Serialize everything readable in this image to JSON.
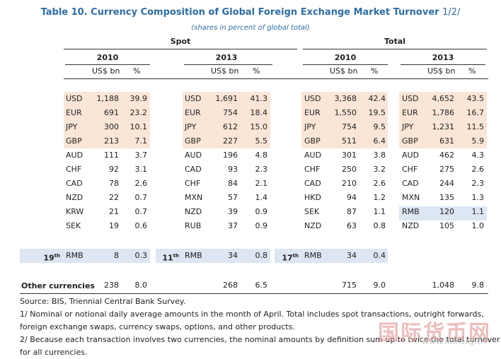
{
  "title": "Table 10. Currency Composition of Global Foreign Exchange Market Turnover",
  "title_page": "1/2/",
  "subtitle": "(shares in percent of global total)",
  "groups": {
    "spot": "Spot",
    "total": "Total"
  },
  "years": {
    "y2010": "2010",
    "y2013": "2013"
  },
  "units": {
    "usd": "US$ bn",
    "pct": "%"
  },
  "panels": [
    {
      "rows": [
        [
          "USD",
          "1,188",
          "39.9"
        ],
        [
          "EUR",
          "691",
          "23.2"
        ],
        [
          "JPY",
          "300",
          "10.1"
        ],
        [
          "GBP",
          "213",
          "7.1"
        ],
        [
          "AUD",
          "111",
          "3.7"
        ],
        [
          "CHF",
          "92",
          "3.1"
        ],
        [
          "CAD",
          "78",
          "2.6"
        ],
        [
          "NZD",
          "22",
          "0.7"
        ],
        [
          "KRW",
          "21",
          "0.7"
        ],
        [
          "SEK",
          "19",
          "0.6"
        ]
      ],
      "rmb": {
        "rank": "19",
        "suffix": "th",
        "code": "RMB",
        "value": "8",
        "pct": "0.3"
      },
      "other": {
        "value": "238",
        "pct": "8.0"
      }
    },
    {
      "rows": [
        [
          "USD",
          "1,691",
          "41.3"
        ],
        [
          "EUR",
          "754",
          "18.4"
        ],
        [
          "JPY",
          "612",
          "15.0"
        ],
        [
          "GBP",
          "227",
          "5.5"
        ],
        [
          "AUD",
          "196",
          "4.8"
        ],
        [
          "CAD",
          "93",
          "2.3"
        ],
        [
          "CHF",
          "84",
          "2.1"
        ],
        [
          "MXN",
          "57",
          "1.4"
        ],
        [
          "NZD",
          "39",
          "0.9"
        ],
        [
          "RUB",
          "37",
          "0.9"
        ]
      ],
      "rmb": {
        "rank": "11",
        "suffix": "th",
        "code": "RMB",
        "value": "34",
        "pct": "0.8"
      },
      "other": {
        "value": "268",
        "pct": "6.5"
      }
    },
    {
      "rows": [
        [
          "USD",
          "3,368",
          "42.4"
        ],
        [
          "EUR",
          "1,550",
          "19.5"
        ],
        [
          "JPY",
          "754",
          "9.5"
        ],
        [
          "GBP",
          "511",
          "6.4"
        ],
        [
          "AUD",
          "301",
          "3.8"
        ],
        [
          "CHF",
          "250",
          "3.2"
        ],
        [
          "CAD",
          "210",
          "2.6"
        ],
        [
          "HKD",
          "94",
          "1.2"
        ],
        [
          "SEK",
          "87",
          "1.1"
        ],
        [
          "NZD",
          "63",
          "0.8"
        ]
      ],
      "rmb": {
        "rank": "17",
        "suffix": "th",
        "code": "RMB",
        "value": "34",
        "pct": "0.4"
      },
      "other": {
        "value": "715",
        "pct": "9.0"
      }
    },
    {
      "rows": [
        [
          "USD",
          "4,652",
          "43.5"
        ],
        [
          "EUR",
          "1,786",
          "16.7"
        ],
        [
          "JPY",
          "1,231",
          "11.5"
        ],
        [
          "GBP",
          "631",
          "5.9"
        ],
        [
          "AUD",
          "462",
          "4.3"
        ],
        [
          "CHF",
          "275",
          "2.6"
        ],
        [
          "CAD",
          "244",
          "2.3"
        ],
        [
          "MXN",
          "135",
          "1.3"
        ],
        [
          "RMB",
          "120",
          "1.1"
        ],
        [
          "NZD",
          "105",
          "1.0"
        ]
      ],
      "other": {
        "value": "1,048",
        "pct": "9.8"
      }
    }
  ],
  "other_label": "Other currencies",
  "notes": [
    "Source: BIS, Triennial Central Bank Survey.",
    "1/ Nominal or notional daily average amounts in the month of April. Total includes spot transactions, outright forwards,",
    "foreign exchange swaps, currency swaps, options, and other products.",
    "2/ Because each transaction involves two currencies, the nominal amounts by definition sum up to twice the total turnover",
    "for all currencies."
  ],
  "watermark": {
    "text": "国际货币网",
    "url": "www.imi.org.cn"
  },
  "colors": {
    "title": "#2e6da4",
    "major_shade": "#fbe5d6",
    "rmb_shade": "#dde6f3"
  }
}
